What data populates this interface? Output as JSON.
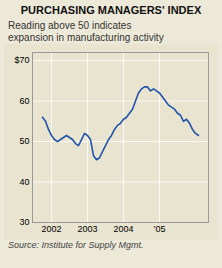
{
  "chart_data": {
    "type": "line",
    "title": "PURCHASING MANAGERS' INDEX",
    "subtitle": "Reading above 50 indicates\nexpansion in manufacturing activity",
    "source": "Source: Institute for Supply Mgmt.",
    "categories": [
      null,
      null,
      null,
      "2002",
      null,
      null,
      null,
      null,
      null,
      null,
      null,
      null,
      null,
      null,
      null,
      "2003",
      null,
      null,
      null,
      null,
      null,
      null,
      null,
      null,
      null,
      null,
      null,
      "2004",
      null,
      null,
      null,
      null,
      null,
      null,
      null,
      null,
      null,
      null,
      null,
      "’05",
      null,
      null,
      null,
      null,
      null,
      null,
      null,
      null,
      null,
      null,
      null,
      null,
      null
    ],
    "values": [
      56.0,
      55.0,
      53.0,
      51.5,
      50.5,
      50.0,
      50.5,
      51.0,
      51.5,
      51.0,
      50.5,
      49.5,
      49.0,
      50.5,
      52.0,
      51.5,
      50.5,
      46.5,
      45.5,
      46.0,
      47.5,
      49.0,
      50.5,
      51.5,
      53.0,
      54.0,
      54.5,
      55.5,
      56.0,
      57.0,
      58.0,
      60.0,
      62.0,
      63.0,
      63.5,
      63.5,
      62.5,
      63.0,
      62.5,
      62.0,
      61.0,
      60.0,
      59.0,
      58.5,
      58.0,
      57.0,
      56.5,
      55.0,
      55.5,
      54.5,
      53.0,
      52.0,
      51.5
    ],
    "color": "#2255aa",
    "ylim": [
      30,
      72
    ],
    "yticks": [
      30,
      40,
      50,
      60,
      {
        "value": 70,
        "label": "$70"
      }
    ],
    "grid": true
  }
}
